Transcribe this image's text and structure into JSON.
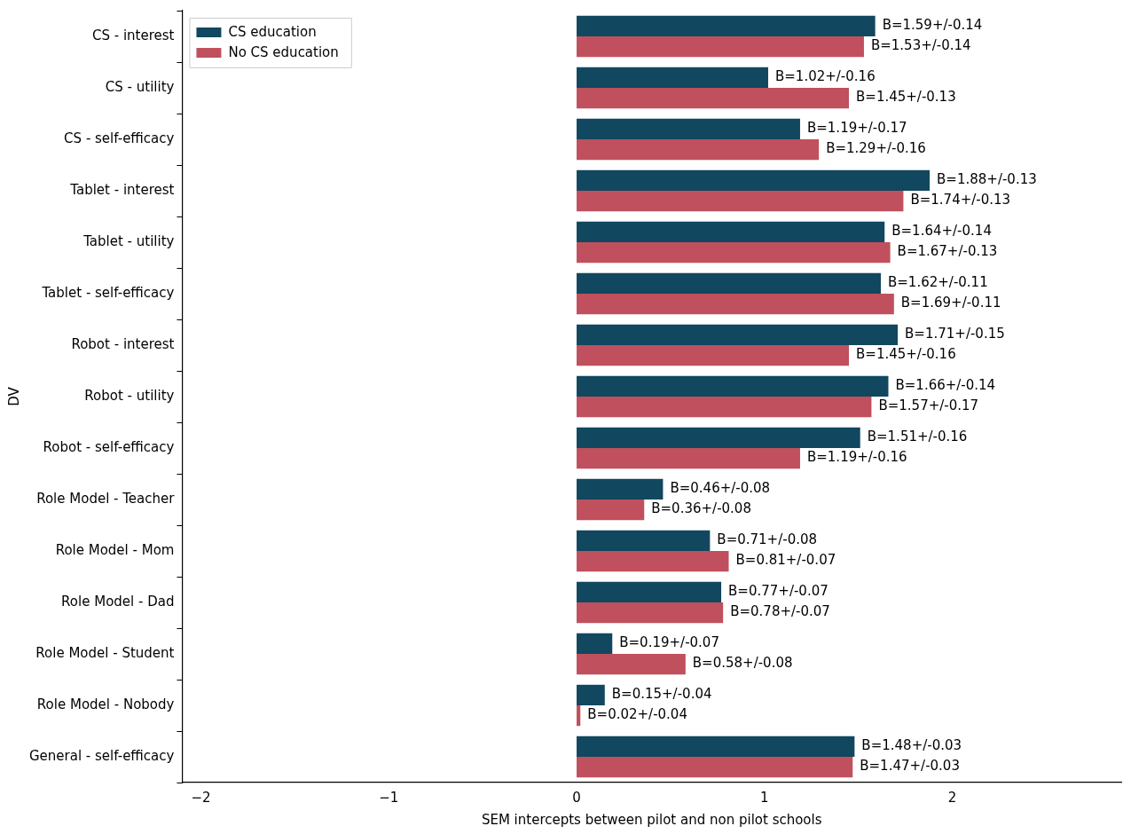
{
  "chart_data": {
    "type": "bar",
    "orientation": "horizontal",
    "xlabel": "SEM intercepts between pilot and non pilot schools",
    "ylabel": "DV",
    "categories": [
      "CS - interest",
      "CS - utility",
      "CS - self-efficacy",
      "Tablet - interest",
      "Tablet - utility",
      "Tablet - self-efficacy",
      "Robot - interest",
      "Robot - utility",
      "Robot - self-efficacy",
      "Role Model - Teacher",
      "Role Model - Mom",
      "Role Model - Dad",
      "Role Model - Student",
      "Role Model - Nobody",
      "General - self-efficacy"
    ],
    "series": [
      {
        "name": "CS education",
        "color": "#11475f",
        "values": [
          1.59,
          1.02,
          1.19,
          1.88,
          1.64,
          1.62,
          1.71,
          1.66,
          1.51,
          0.46,
          0.71,
          0.77,
          0.19,
          0.15,
          1.48
        ],
        "value_labels": [
          "B=1.59+/-0.14",
          "B=1.02+/-0.16",
          "B=1.19+/-0.17",
          "B=1.88+/-0.13",
          "B=1.64+/-0.14",
          "B=1.62+/-0.11",
          "B=1.71+/-0.15",
          "B=1.66+/-0.14",
          "B=1.51+/-0.16",
          "B=0.46+/-0.08",
          "B=0.71+/-0.08",
          "B=0.77+/-0.07",
          "B=0.19+/-0.07",
          "B=0.15+/-0.04",
          "B=1.48+/-0.03"
        ]
      },
      {
        "name": "No CS education",
        "color": "#c0505d",
        "values": [
          1.53,
          1.45,
          1.29,
          1.74,
          1.67,
          1.69,
          1.45,
          1.57,
          1.19,
          0.36,
          0.81,
          0.78,
          0.58,
          0.02,
          1.47
        ],
        "value_labels": [
          "B=1.53+/-0.14",
          "B=1.45+/-0.13",
          "B=1.29+/-0.16",
          "B=1.74+/-0.13",
          "B=1.67+/-0.13",
          "B=1.69+/-0.11",
          "B=1.45+/-0.16",
          "B=1.57+/-0.17",
          "B=1.19+/-0.16",
          "B=0.36+/-0.08",
          "B=0.81+/-0.07",
          "B=0.78+/-0.07",
          "B=0.58+/-0.08",
          "B=0.02+/-0.04",
          "B=1.47+/-0.03"
        ]
      }
    ],
    "xlim": [
      -2.1,
      2.9
    ],
    "xticks": [
      {
        "value": -2,
        "label": "−2"
      },
      {
        "value": -1,
        "label": "−1"
      },
      0,
      1,
      2
    ],
    "legend": "top left"
  }
}
